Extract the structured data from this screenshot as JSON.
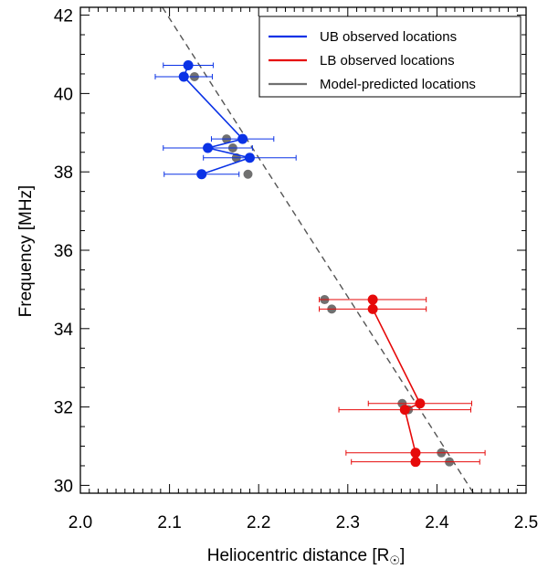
{
  "chart_data": {
    "type": "scatter",
    "xlabel": "Heliocentric distance [R",
    "xlabel_sub": "☉",
    "xlabel_close": "]",
    "ylabel": "Frequency [MHz]",
    "xlim": [
      2.0,
      2.5
    ],
    "ylim": [
      29.8,
      42.2
    ],
    "xticks": [
      "2.0",
      "2.1",
      "2.2",
      "2.3",
      "2.4",
      "2.5"
    ],
    "yticks": [
      "30",
      "32",
      "34",
      "36",
      "38",
      "40",
      "42"
    ],
    "grid": false,
    "legend_placement": "top-right",
    "colors": {
      "ub": "#0a32e6",
      "lb": "#e60a0a",
      "model": "#707070",
      "fit": "#555555"
    },
    "series": [
      {
        "name": "UB observed locations",
        "key": "ub",
        "points": [
          {
            "x": 2.121,
            "y": 40.72,
            "xerr": 0.028
          },
          {
            "x": 2.116,
            "y": 40.43,
            "xerr": 0.032
          },
          {
            "x": 2.182,
            "y": 38.84,
            "xerr": 0.035
          },
          {
            "x": 2.143,
            "y": 38.61,
            "xerr": 0.05
          },
          {
            "x": 2.19,
            "y": 38.36,
            "xerr": 0.052
          },
          {
            "x": 2.136,
            "y": 37.94,
            "xerr": 0.042
          }
        ],
        "connect": true
      },
      {
        "name": "LB observed locations",
        "key": "lb",
        "points": [
          {
            "x": 2.328,
            "y": 34.74,
            "xerr": 0.06
          },
          {
            "x": 2.328,
            "y": 34.5,
            "xerr": 0.06
          },
          {
            "x": 2.381,
            "y": 32.09,
            "xerr": 0.058
          },
          {
            "x": 2.364,
            "y": 31.93,
            "xerr": 0.074
          },
          {
            "x": 2.376,
            "y": 30.83,
            "xerr": 0.078
          },
          {
            "x": 2.376,
            "y": 30.6,
            "xerr": 0.072
          }
        ],
        "connect": true
      },
      {
        "name": "Model-predicted locations",
        "key": "model",
        "points": [
          {
            "x": 2.128,
            "y": 40.43
          },
          {
            "x": 2.164,
            "y": 38.84
          },
          {
            "x": 2.171,
            "y": 38.61
          },
          {
            "x": 2.175,
            "y": 38.36
          },
          {
            "x": 2.188,
            "y": 37.94
          },
          {
            "x": 2.274,
            "y": 34.74
          },
          {
            "x": 2.282,
            "y": 34.5
          },
          {
            "x": 2.361,
            "y": 32.09
          },
          {
            "x": 2.368,
            "y": 31.93
          },
          {
            "x": 2.405,
            "y": 30.83
          },
          {
            "x": 2.414,
            "y": 30.6
          }
        ],
        "connect": false
      }
    ],
    "fit_line": {
      "style": "dashed",
      "points": [
        [
          2.092,
          42.2
        ],
        [
          2.441,
          29.8
        ]
      ]
    }
  }
}
